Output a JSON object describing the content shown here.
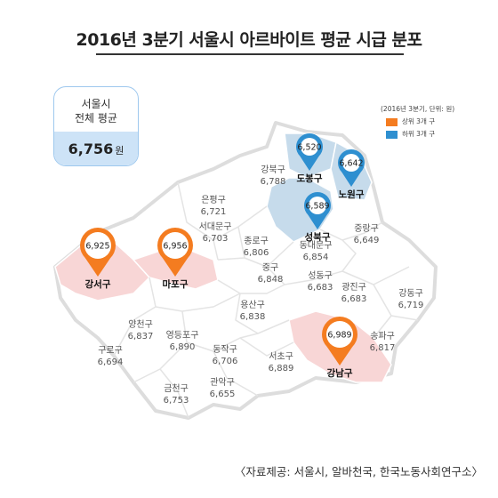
{
  "title": "2016년 3분기 서울시 아르바이트 평균 시급 분포",
  "average": {
    "line1": "서울시",
    "line2": "전체 평균",
    "value": "6,756",
    "unit": "원"
  },
  "legend": {
    "note": "(2016년 3분기, 단위: 원)",
    "items": [
      {
        "label": "상위 3개 구",
        "color": "#f47c20"
      },
      {
        "label": "하위 3개 구",
        "color": "#2e8fd0"
      }
    ]
  },
  "colors": {
    "top3_fill": "#f8d6d6",
    "bottom3_fill": "#c6dbeb",
    "map_outline": "#dddddd",
    "top_pin": "#f47c20",
    "bottom_pin": "#2e8fd0"
  },
  "districts": [
    {
      "name": "강북구",
      "value": "6,788"
    },
    {
      "name": "은평구",
      "value": "6,721"
    },
    {
      "name": "서대문구",
      "value": "6,703"
    },
    {
      "name": "종로구",
      "value": "6,806"
    },
    {
      "name": "동대문구",
      "value": "6,854"
    },
    {
      "name": "중랑구",
      "value": "6,649"
    },
    {
      "name": "중구",
      "value": "6,848"
    },
    {
      "name": "성동구",
      "value": "6,683"
    },
    {
      "name": "광진구",
      "value": "6,683"
    },
    {
      "name": "용산구",
      "value": "6,838"
    },
    {
      "name": "강동구",
      "value": "6,719"
    },
    {
      "name": "양천구",
      "value": "6,837"
    },
    {
      "name": "영등포구",
      "value": "6,890"
    },
    {
      "name": "구로구",
      "value": "6,694"
    },
    {
      "name": "동작구",
      "value": "6,706"
    },
    {
      "name": "서초구",
      "value": "6,889"
    },
    {
      "name": "송파구",
      "value": "6,817"
    },
    {
      "name": "금천구",
      "value": "6,753"
    },
    {
      "name": "관악구",
      "value": "6,655"
    }
  ],
  "pins": [
    {
      "name": "강서구",
      "value": "6,925",
      "group": "top",
      "icon": "map-pin-icon"
    },
    {
      "name": "마포구",
      "value": "6,956",
      "group": "top",
      "icon": "map-pin-icon"
    },
    {
      "name": "강남구",
      "value": "6,989",
      "group": "top",
      "icon": "map-pin-icon"
    },
    {
      "name": "도봉구",
      "value": "6,520",
      "group": "bottom",
      "icon": "map-pin-icon"
    },
    {
      "name": "노원구",
      "value": "6,642",
      "group": "bottom",
      "icon": "map-pin-icon"
    },
    {
      "name": "성북구",
      "value": "6,589",
      "group": "bottom",
      "icon": "map-pin-icon"
    }
  ],
  "source": "〈자료제공: 서울시, 알바천국, 한국노동사회연구소〉"
}
